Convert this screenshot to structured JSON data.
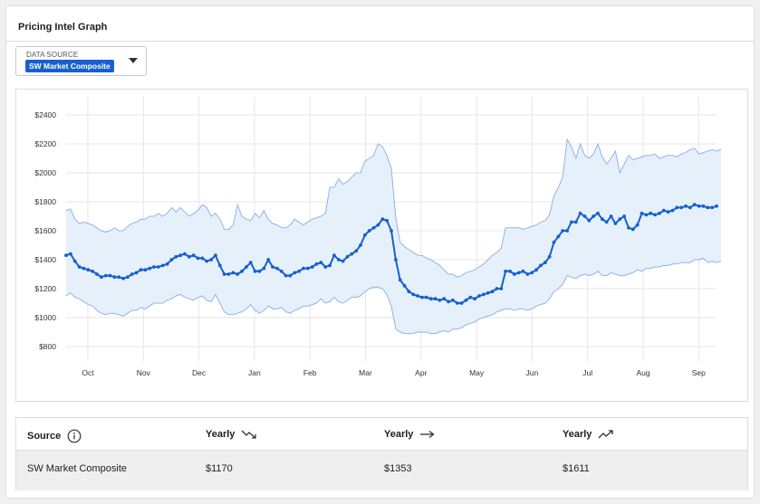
{
  "panel": {
    "title": "Pricing Intel Graph"
  },
  "data_source": {
    "label": "DATA SOURCE",
    "value": "SW Market Composite",
    "icon": "caret-down-icon"
  },
  "chart_data": {
    "type": "line",
    "y_ticks": [
      "$800",
      "$1000",
      "$1200",
      "$1400",
      "$1600",
      "$1800",
      "$2000",
      "$2200",
      "$2400"
    ],
    "ylim": [
      700,
      2500
    ],
    "x_ticks": [
      "Oct",
      "Nov",
      "Dec",
      "Jan",
      "Feb",
      "Mar",
      "Apr",
      "May",
      "Jun",
      "Jul",
      "Aug",
      "Sep"
    ],
    "grid": true,
    "colors": {
      "line": "#1660cf",
      "band_fill": "#e6f0fb",
      "band_stroke": "#8fb5e6"
    },
    "series": [
      {
        "role": "price",
        "values": [
          1430,
          1440,
          1390,
          1350,
          1340,
          1330,
          1320,
          1300,
          1280,
          1290,
          1290,
          1280,
          1280,
          1270,
          1280,
          1300,
          1310,
          1330,
          1330,
          1340,
          1350,
          1350,
          1360,
          1370,
          1400,
          1420,
          1430,
          1440,
          1420,
          1430,
          1410,
          1410,
          1390,
          1400,
          1430,
          1360,
          1300,
          1300,
          1310,
          1300,
          1320,
          1350,
          1380,
          1320,
          1320,
          1340,
          1400,
          1350,
          1340,
          1320,
          1290,
          1290,
          1310,
          1320,
          1340,
          1340,
          1350,
          1370,
          1380,
          1350,
          1360,
          1430,
          1400,
          1390,
          1420,
          1440,
          1460,
          1500,
          1570,
          1600,
          1620,
          1640,
          1680,
          1670,
          1600,
          1400,
          1260,
          1220,
          1180,
          1160,
          1150,
          1140,
          1140,
          1130,
          1130,
          1120,
          1130,
          1110,
          1120,
          1100,
          1100,
          1120,
          1140,
          1130,
          1150,
          1160,
          1170,
          1180,
          1200,
          1200,
          1320,
          1320,
          1300,
          1310,
          1320,
          1300,
          1310,
          1330,
          1360,
          1380,
          1420,
          1520,
          1560,
          1600,
          1600,
          1660,
          1660,
          1720,
          1700,
          1670,
          1700,
          1720,
          1680,
          1660,
          1700,
          1650,
          1680,
          1700,
          1620,
          1610,
          1640,
          1720,
          1710,
          1720,
          1710,
          1720,
          1740,
          1730,
          1740,
          1760,
          1760,
          1770,
          1760,
          1780,
          1770,
          1770,
          1760,
          1760,
          1770
        ]
      },
      {
        "role": "range-high",
        "values": [
          1740,
          1750,
          1680,
          1650,
          1660,
          1650,
          1640,
          1620,
          1600,
          1590,
          1600,
          1620,
          1600,
          1600,
          1630,
          1650,
          1660,
          1680,
          1680,
          1700,
          1700,
          1720,
          1700,
          1720,
          1760,
          1730,
          1760,
          1730,
          1700,
          1720,
          1740,
          1780,
          1760,
          1700,
          1720,
          1680,
          1610,
          1610,
          1640,
          1780,
          1700,
          1680,
          1670,
          1720,
          1690,
          1740,
          1680,
          1650,
          1640,
          1620,
          1620,
          1640,
          1680,
          1660,
          1640,
          1660,
          1680,
          1690,
          1700,
          1720,
          1900,
          1900,
          1960,
          1920,
          1940,
          1970,
          2000,
          2000,
          2080,
          2100,
          2120,
          2200,
          2180,
          2120,
          2030,
          1690,
          1520,
          1490,
          1470,
          1450,
          1430,
          1430,
          1410,
          1400,
          1380,
          1360,
          1330,
          1300,
          1300,
          1280,
          1290,
          1310,
          1320,
          1330,
          1350,
          1370,
          1400,
          1430,
          1450,
          1480,
          1620,
          1620,
          1620,
          1620,
          1610,
          1620,
          1630,
          1640,
          1660,
          1670,
          1710,
          1840,
          1900,
          1970,
          2230,
          2180,
          2100,
          2200,
          2120,
          2100,
          2130,
          2200,
          2110,
          2060,
          2100,
          2150,
          2000,
          2060,
          2120,
          2090,
          2100,
          2110,
          2120,
          2120,
          2130,
          2100,
          2110,
          2120,
          2120,
          2110,
          2130,
          2140,
          2160,
          2170,
          2130,
          2140,
          2150,
          2160,
          2150,
          2160
        ]
      },
      {
        "role": "range-low",
        "values": [
          1150,
          1170,
          1140,
          1130,
          1110,
          1090,
          1080,
          1050,
          1030,
          1020,
          1030,
          1030,
          1020,
          1010,
          1030,
          1050,
          1050,
          1070,
          1060,
          1080,
          1100,
          1100,
          1100,
          1120,
          1130,
          1150,
          1160,
          1140,
          1130,
          1120,
          1140,
          1150,
          1120,
          1110,
          1160,
          1100,
          1040,
          1020,
          1020,
          1030,
          1040,
          1060,
          1090,
          1050,
          1030,
          1050,
          1080,
          1060,
          1060,
          1070,
          1040,
          1030,
          1050,
          1060,
          1080,
          1080,
          1090,
          1100,
          1130,
          1100,
          1110,
          1140,
          1110,
          1100,
          1120,
          1140,
          1140,
          1150,
          1180,
          1200,
          1210,
          1210,
          1200,
          1160,
          1080,
          920,
          900,
          890,
          890,
          890,
          900,
          900,
          900,
          890,
          890,
          900,
          910,
          900,
          920,
          920,
          930,
          950,
          960,
          970,
          990,
          1000,
          1010,
          1020,
          1040,
          1050,
          1060,
          1060,
          1050,
          1060,
          1060,
          1050,
          1060,
          1080,
          1090,
          1100,
          1130,
          1180,
          1200,
          1230,
          1290,
          1280,
          1270,
          1290,
          1300,
          1290,
          1300,
          1320,
          1290,
          1290,
          1310,
          1300,
          1290,
          1290,
          1300,
          1310,
          1330,
          1320,
          1340,
          1340,
          1350,
          1350,
          1360,
          1360,
          1370,
          1370,
          1380,
          1380,
          1380,
          1400,
          1400,
          1410,
          1380,
          1390,
          1380,
          1390
        ]
      }
    ]
  },
  "table": {
    "headers": [
      {
        "label": "Source",
        "icon": "info-icon"
      },
      {
        "label": "Yearly",
        "icon": "trend-down-icon"
      },
      {
        "label": "Yearly",
        "icon": "trend-flat-icon"
      },
      {
        "label": "Yearly",
        "icon": "trend-up-icon"
      }
    ],
    "rows": [
      {
        "source": "SW Market Composite",
        "low": "$1170",
        "mid": "$1353",
        "high": "$1611"
      }
    ]
  }
}
